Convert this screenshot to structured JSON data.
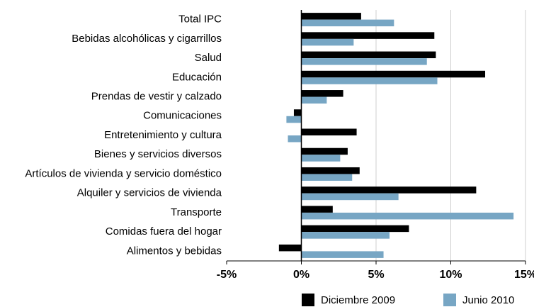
{
  "chart_data": {
    "type": "hbar",
    "categories": [
      "Total IPC",
      "Bebidas alcohólicas y cigarrillos",
      "Salud",
      "Educación",
      "Prendas de vestir y calzado",
      "Comunicaciones",
      "Entretenimiento y cultura",
      "Bienes y servicios diversos",
      "Artículos de vivienda y servicio doméstico",
      "Alquiler y servicios de vivienda",
      "Transporte",
      "Comidas fuera del hogar",
      "Alimentos y bebidas"
    ],
    "series": [
      {
        "name": "Diciembre 2009",
        "color": "#000000",
        "values": [
          4.0,
          8.9,
          9.0,
          12.3,
          2.8,
          -0.5,
          3.7,
          3.1,
          3.9,
          11.7,
          2.1,
          7.2,
          -1.5
        ]
      },
      {
        "name": "Junio 2010",
        "color": "#77a6c4",
        "values": [
          6.2,
          3.5,
          8.4,
          9.1,
          1.7,
          -1.0,
          -0.9,
          2.6,
          3.4,
          6.5,
          14.2,
          5.9,
          5.5
        ]
      }
    ],
    "xlim": [
      -5,
      15
    ],
    "xticks": [
      {
        "value": -5,
        "label": "-5%"
      },
      {
        "value": 0,
        "label": "0%"
      },
      {
        "value": 5,
        "label": "5%"
      },
      {
        "value": 10,
        "label": "10%"
      },
      {
        "value": 15,
        "label": "15%"
      }
    ],
    "grid": true
  }
}
